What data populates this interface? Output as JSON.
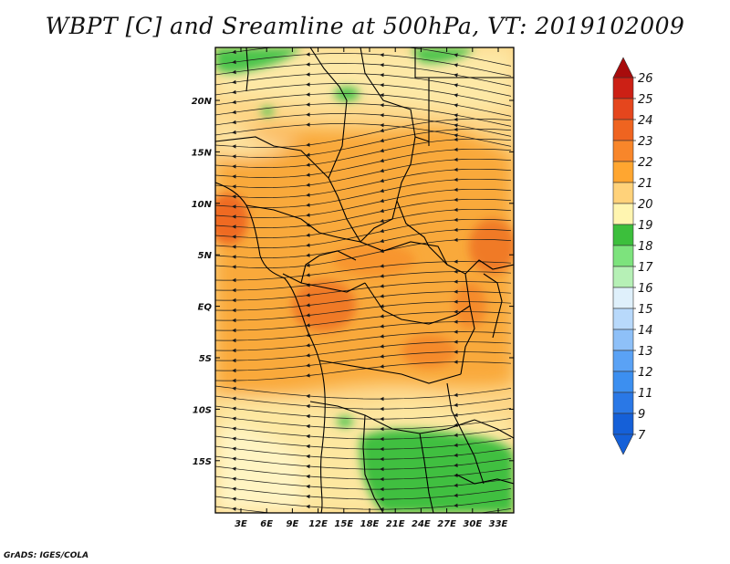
{
  "title": "WBPT [C] and Sreamline at 500hPa, VT: 2019102009",
  "credit": "GrADS: IGES/COLA",
  "map": {
    "lat_labels": [
      "20N",
      "15N",
      "10N",
      "5N",
      "EQ",
      "5S",
      "10S",
      "15S"
    ],
    "lon_labels": [
      "3E",
      "6E",
      "9E",
      "12E",
      "15E",
      "18E",
      "21E",
      "24E",
      "27E",
      "30E",
      "33E"
    ]
  },
  "colorbar": {
    "labels": [
      "7",
      "9",
      "11",
      "12",
      "13",
      "14",
      "15",
      "16",
      "17",
      "18",
      "19",
      "20",
      "21",
      "22",
      "23",
      "24",
      "25",
      "26"
    ],
    "colors": [
      "#1560d8",
      "#2a78e6",
      "#3c8ff0",
      "#5aa2f5",
      "#8ec0f8",
      "#b8d9fb",
      "#dff0fb",
      "#b6f0b6",
      "#7de37d",
      "#3cbf3c",
      "#fff5b0",
      "#ffd27a",
      "#ffa630",
      "#f8862a",
      "#ef6420",
      "#e5461d",
      "#cc2015",
      "#a80c0c"
    ],
    "under_color": "#1560d8",
    "over_color": "#a80c0c"
  }
}
